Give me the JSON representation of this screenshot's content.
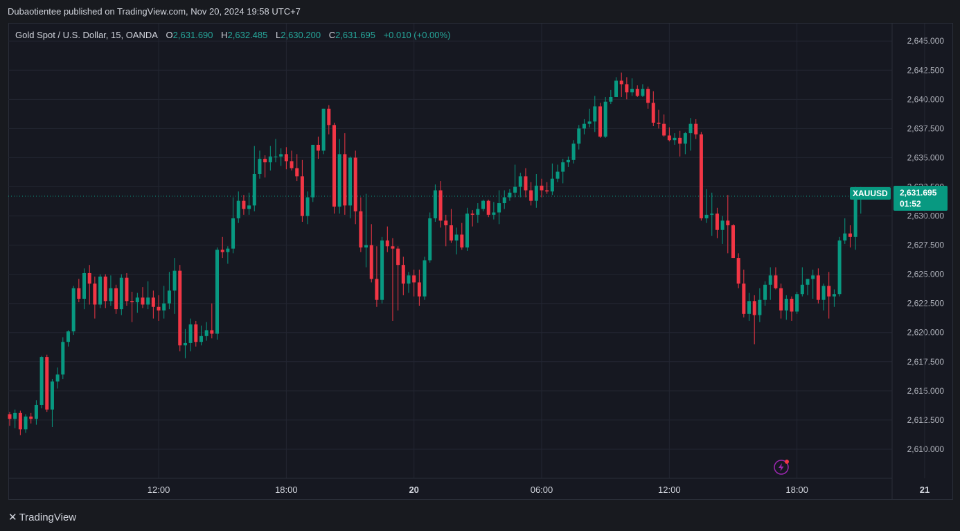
{
  "header": {
    "published_text": "Dubaotientee published on TradingView.com, Nov 20, 2024 19:58 UTC+7"
  },
  "legend": {
    "symbol": "Gold Spot / U.S. Dollar, 15, OANDA",
    "open_label": "O",
    "open": "2,631.690",
    "high_label": "H",
    "high": "2,632.485",
    "low_label": "L",
    "low": "2,630.200",
    "close_label": "C",
    "close": "2,631.695",
    "change": "+0.010 (+0.00%)"
  },
  "symbol_tag": "XAUUSD",
  "price_tag": {
    "price": "2,631.695",
    "countdown": "01:52"
  },
  "footer": {
    "logo_text": "TradingView"
  },
  "colors": {
    "up": "#089981",
    "down": "#f23645",
    "background": "#161821",
    "grid": "#232632"
  },
  "chart_data": {
    "type": "candlestick",
    "ylim": [
      2607.5,
      2646.5
    ],
    "y_ticks": [
      {
        "value": 2645.0,
        "label": "2,645.000"
      },
      {
        "value": 2642.5,
        "label": "2,642.500"
      },
      {
        "value": 2640.0,
        "label": "2,640.000"
      },
      {
        "value": 2637.5,
        "label": "2,637.500"
      },
      {
        "value": 2635.0,
        "label": "2,635.000"
      },
      {
        "value": 2632.5,
        "label": "2,632.500"
      },
      {
        "value": 2630.0,
        "label": "2,630.000"
      },
      {
        "value": 2627.5,
        "label": "2,627.500"
      },
      {
        "value": 2625.0,
        "label": "2,625.000"
      },
      {
        "value": 2622.5,
        "label": "2,622.500"
      },
      {
        "value": 2620.0,
        "label": "2,620.000"
      },
      {
        "value": 2617.5,
        "label": "2,617.500"
      },
      {
        "value": 2615.0,
        "label": "2,615.000"
      },
      {
        "value": 2612.5,
        "label": "2,612.500"
      },
      {
        "value": 2610.0,
        "label": "2,610.000"
      }
    ],
    "x_ticks": [
      {
        "label": "12:00",
        "bar": 28,
        "bold": false
      },
      {
        "label": "18:00",
        "bar": 52,
        "bold": false
      },
      {
        "label": "20",
        "bar": 76,
        "bold": true
      },
      {
        "label": "06:00",
        "bar": 100,
        "bold": false
      },
      {
        "label": "12:00",
        "bar": 124,
        "bold": false
      },
      {
        "label": "18:00",
        "bar": 148,
        "bold": false
      },
      {
        "label": "21",
        "bar": 172,
        "bold": true
      }
    ],
    "last_price": 2631.695,
    "ohlc": [
      [
        2613,
        2613.2,
        2612,
        2612.6
      ],
      [
        2612.6,
        2613.4,
        2611.8,
        2613.1
      ],
      [
        2613.1,
        2613.3,
        2611.2,
        2611.7
      ],
      [
        2611.7,
        2613,
        2611.4,
        2612.8
      ],
      [
        2612.8,
        2613.1,
        2612.2,
        2612.6
      ],
      [
        2612.6,
        2614.2,
        2612.1,
        2613.8
      ],
      [
        2613.8,
        2618,
        2613.5,
        2617.9
      ],
      [
        2617.9,
        2618.1,
        2613.2,
        2613.4
      ],
      [
        2613.4,
        2616,
        2611.9,
        2615.8
      ],
      [
        2615.8,
        2617,
        2615.2,
        2616.4
      ],
      [
        2616.4,
        2619.6,
        2616,
        2619.2
      ],
      [
        2619.2,
        2620.2,
        2618.8,
        2620.1
      ],
      [
        2620.1,
        2624,
        2619.8,
        2623.8
      ],
      [
        2623.8,
        2624.6,
        2622.6,
        2622.9
      ],
      [
        2622.9,
        2625.5,
        2622,
        2625.1
      ],
      [
        2625.1,
        2625.8,
        2622.4,
        2624.2
      ],
      [
        2624.2,
        2624.8,
        2621.2,
        2622.4
      ],
      [
        2622.4,
        2625,
        2622.1,
        2624.8
      ],
      [
        2624.8,
        2625,
        2622.1,
        2622.7
      ],
      [
        2622.7,
        2624.9,
        2622.3,
        2623.8
      ],
      [
        2623.8,
        2624.1,
        2621.6,
        2622
      ],
      [
        2622,
        2625,
        2621.5,
        2624.7
      ],
      [
        2624.7,
        2625.1,
        2622.3,
        2622.7
      ],
      [
        2622.7,
        2623.5,
        2620.9,
        2622.6
      ],
      [
        2622.6,
        2623.4,
        2621.7,
        2623
      ],
      [
        2623,
        2623.9,
        2622.1,
        2622.4
      ],
      [
        2622.4,
        2624.4,
        2622,
        2623
      ],
      [
        2623,
        2623.6,
        2621.2,
        2622.2
      ],
      [
        2622.2,
        2623.2,
        2621,
        2621.9
      ],
      [
        2621.9,
        2624,
        2621.2,
        2622.5
      ],
      [
        2622.5,
        2625.2,
        2622,
        2623.6
      ],
      [
        2623.6,
        2626.4,
        2621.6,
        2625.3
      ],
      [
        2625.3,
        2625.8,
        2618.4,
        2618.9
      ],
      [
        2618.9,
        2620.3,
        2617.8,
        2619.1
      ],
      [
        2619.1,
        2621.2,
        2618.4,
        2620.7
      ],
      [
        2620.7,
        2621,
        2618.8,
        2619.2
      ],
      [
        2619.2,
        2620.6,
        2618.9,
        2619.7
      ],
      [
        2619.7,
        2620.9,
        2619.3,
        2620.2
      ],
      [
        2620.2,
        2622.5,
        2619.5,
        2619.9
      ],
      [
        2619.9,
        2627.3,
        2619.4,
        2627.1
      ],
      [
        2627.1,
        2628.2,
        2626.4,
        2626.9
      ],
      [
        2626.9,
        2627.4,
        2625.9,
        2627.2
      ],
      [
        2627.2,
        2631.6,
        2626.8,
        2629.8
      ],
      [
        2629.8,
        2632.1,
        2629.4,
        2631.3
      ],
      [
        2631.3,
        2631.8,
        2630.1,
        2630.6
      ],
      [
        2630.6,
        2632,
        2630.1,
        2630.9
      ],
      [
        2630.9,
        2636,
        2630.4,
        2633.6
      ],
      [
        2633.6,
        2635.6,
        2633.2,
        2634.9
      ],
      [
        2634.9,
        2635.2,
        2633.3,
        2634.6
      ],
      [
        2634.6,
        2636,
        2633.9,
        2635.1
      ],
      [
        2635.1,
        2636.6,
        2634.6,
        2635.1
      ],
      [
        2635.1,
        2635.8,
        2634.3,
        2635.3
      ],
      [
        2635.3,
        2635.9,
        2634,
        2634.7
      ],
      [
        2634.7,
        2635.6,
        2633.9,
        2634.1
      ],
      [
        2634.1,
        2635.3,
        2633,
        2633.4
      ],
      [
        2633.4,
        2634.8,
        2629.5,
        2630
      ],
      [
        2630,
        2632.1,
        2629.3,
        2631.6
      ],
      [
        2631.6,
        2636.1,
        2631.2,
        2636.1
      ],
      [
        2636.1,
        2636.8,
        2634.9,
        2635.6
      ],
      [
        2635.6,
        2639.2,
        2635.3,
        2639.2
      ],
      [
        2639.2,
        2639.5,
        2637,
        2637.8
      ],
      [
        2637.8,
        2638,
        2630.2,
        2630.8
      ],
      [
        2630.8,
        2636.6,
        2630.2,
        2635.3
      ],
      [
        2635.3,
        2637.1,
        2630.1,
        2630.9
      ],
      [
        2630.9,
        2635.1,
        2629.8,
        2635
      ],
      [
        2635,
        2635.6,
        2629.3,
        2630.4
      ],
      [
        2630.4,
        2631.6,
        2626.9,
        2627.3
      ],
      [
        2627.3,
        2631.9,
        2625.6,
        2627.5
      ],
      [
        2627.5,
        2629.3,
        2624.3,
        2624.6
      ],
      [
        2624.6,
        2627.4,
        2622.2,
        2622.8
      ],
      [
        2622.8,
        2628.2,
        2622.5,
        2627.9
      ],
      [
        2627.9,
        2629.1,
        2626.9,
        2627.4
      ],
      [
        2627.4,
        2628.1,
        2621,
        2627.2
      ],
      [
        2627.2,
        2627.4,
        2621.9,
        2625.8
      ],
      [
        2625.8,
        2626.5,
        2623.2,
        2624.2
      ],
      [
        2624.2,
        2625.2,
        2623.4,
        2624.9
      ],
      [
        2624.9,
        2625.4,
        2623.1,
        2624.3
      ],
      [
        2624.3,
        2625.4,
        2622.3,
        2623.1
      ],
      [
        2623.1,
        2626.5,
        2622.8,
        2626.2
      ],
      [
        2626.2,
        2630.3,
        2626,
        2629.8
      ],
      [
        2629.8,
        2632.7,
        2629.5,
        2632.2
      ],
      [
        2632.2,
        2633,
        2629,
        2629.6
      ],
      [
        2629.6,
        2630.1,
        2627.4,
        2629.2
      ],
      [
        2629.2,
        2630.6,
        2627.7,
        2627.9
      ],
      [
        2627.9,
        2629,
        2626.7,
        2628.4
      ],
      [
        2628.4,
        2629.4,
        2627.1,
        2627.3
      ],
      [
        2627.3,
        2630.7,
        2627,
        2630.2
      ],
      [
        2630.2,
        2630.5,
        2629.1,
        2630.1
      ],
      [
        2630.1,
        2631.1,
        2629.4,
        2630.6
      ],
      [
        2630.6,
        2631.4,
        2630.4,
        2631.3
      ],
      [
        2631.3,
        2631.4,
        2629.9,
        2630.1
      ],
      [
        2630.1,
        2631.2,
        2629.7,
        2630.3
      ],
      [
        2630.3,
        2632.2,
        2629.3,
        2631.1
      ],
      [
        2631.1,
        2632.2,
        2630.6,
        2631.6
      ],
      [
        2631.6,
        2632.3,
        2631.3,
        2632
      ],
      [
        2632,
        2634.4,
        2631.6,
        2632.5
      ],
      [
        2632.5,
        2633.7,
        2631.6,
        2633.4
      ],
      [
        2633.4,
        2634.1,
        2631.6,
        2632.2
      ],
      [
        2632.2,
        2632.9,
        2630.9,
        2631.3
      ],
      [
        2631.3,
        2633.6,
        2630.7,
        2632.6
      ],
      [
        2632.6,
        2633.2,
        2631.6,
        2632.2
      ],
      [
        2632.2,
        2632.9,
        2631.9,
        2632.1
      ],
      [
        2632.1,
        2634.5,
        2631.8,
        2633.2
      ],
      [
        2633.2,
        2634.4,
        2632.9,
        2633.8
      ],
      [
        2633.8,
        2634.9,
        2632.8,
        2634.6
      ],
      [
        2634.6,
        2635.1,
        2634.2,
        2634.8
      ],
      [
        2634.8,
        2636.5,
        2634.5,
        2636.2
      ],
      [
        2636.2,
        2637.8,
        2635.7,
        2637.5
      ],
      [
        2637.5,
        2638.3,
        2637,
        2637.9
      ],
      [
        2637.9,
        2639.2,
        2637.6,
        2638.1
      ],
      [
        2638.1,
        2640.3,
        2637.2,
        2639.4
      ],
      [
        2639.4,
        2639.7,
        2636.7,
        2636.8
      ],
      [
        2636.8,
        2640.2,
        2636.7,
        2639.8
      ],
      [
        2639.8,
        2640.8,
        2639.6,
        2640.2
      ],
      [
        2640.2,
        2641.9,
        2640.2,
        2641.6
      ],
      [
        2641.6,
        2642.3,
        2640.2,
        2641.3
      ],
      [
        2641.3,
        2641.9,
        2640,
        2640.6
      ],
      [
        2640.6,
        2641.8,
        2640.3,
        2640.9
      ],
      [
        2640.9,
        2641.2,
        2640.2,
        2640.3
      ],
      [
        2640.3,
        2641.3,
        2640.2,
        2640.9
      ],
      [
        2640.9,
        2641.1,
        2639.2,
        2639.7
      ],
      [
        2639.7,
        2640.7,
        2637.7,
        2638
      ],
      [
        2638,
        2639.1,
        2637.5,
        2637.9
      ],
      [
        2637.9,
        2638.7,
        2636.8,
        2636.9
      ],
      [
        2636.9,
        2637.6,
        2636.4,
        2636.5
      ],
      [
        2636.5,
        2637.1,
        2636.1,
        2636.7
      ],
      [
        2636.7,
        2637.3,
        2635.1,
        2636.2
      ],
      [
        2636.2,
        2637.2,
        2635.3,
        2637.1
      ],
      [
        2637.1,
        2638.4,
        2635.6,
        2637.9
      ],
      [
        2637.9,
        2638.3,
        2636.6,
        2637
      ],
      [
        2637,
        2637.2,
        2629.6,
        2629.8
      ],
      [
        2629.8,
        2632.3,
        2629.4,
        2630.1
      ],
      [
        2630.1,
        2632,
        2628.3,
        2630.2
      ],
      [
        2630.2,
        2630.7,
        2628.1,
        2628.8
      ],
      [
        2628.8,
        2630,
        2627.6,
        2629.6
      ],
      [
        2629.6,
        2631.8,
        2626.8,
        2629.2
      ],
      [
        2629.2,
        2629.3,
        2626.4,
        2626.4
      ],
      [
        2626.4,
        2626.8,
        2623.8,
        2624.2
      ],
      [
        2624.2,
        2625.4,
        2621.3,
        2621.6
      ],
      [
        2621.6,
        2623.4,
        2621,
        2622.7
      ],
      [
        2622.7,
        2623.2,
        2619,
        2621.5
      ],
      [
        2621.5,
        2623.8,
        2620.9,
        2622.8
      ],
      [
        2622.8,
        2624.4,
        2622.3,
        2624.1
      ],
      [
        2624.1,
        2625.6,
        2622.8,
        2624.9
      ],
      [
        2624.9,
        2625.6,
        2623.7,
        2623.8
      ],
      [
        2623.8,
        2624.2,
        2621.2,
        2621.9
      ],
      [
        2621.9,
        2623.2,
        2621.1,
        2622.9
      ],
      [
        2622.9,
        2623.1,
        2621,
        2621.8
      ],
      [
        2621.8,
        2623.5,
        2621.6,
        2623.3
      ],
      [
        2623.3,
        2625.6,
        2623.1,
        2624.1
      ],
      [
        2624.1,
        2624.6,
        2623.2,
        2624.6
      ],
      [
        2624.6,
        2625.4,
        2622.9,
        2624.9
      ],
      [
        2624.9,
        2625.5,
        2622.5,
        2622.8
      ],
      [
        2622.8,
        2624.2,
        2621.9,
        2624
      ],
      [
        2624,
        2625.2,
        2621.2,
        2623.1
      ],
      [
        2623.1,
        2623.7,
        2622.2,
        2623.3
      ],
      [
        2623.3,
        2628.2,
        2623.1,
        2627.9
      ],
      [
        2627.9,
        2629.8,
        2627.6,
        2628.5
      ],
      [
        2628.5,
        2629.2,
        2627.3,
        2628.2
      ],
      [
        2628.2,
        2632.5,
        2627.1,
        2631.7
      ],
      [
        2631.69,
        2632.485,
        2630.2,
        2631.695
      ]
    ]
  }
}
